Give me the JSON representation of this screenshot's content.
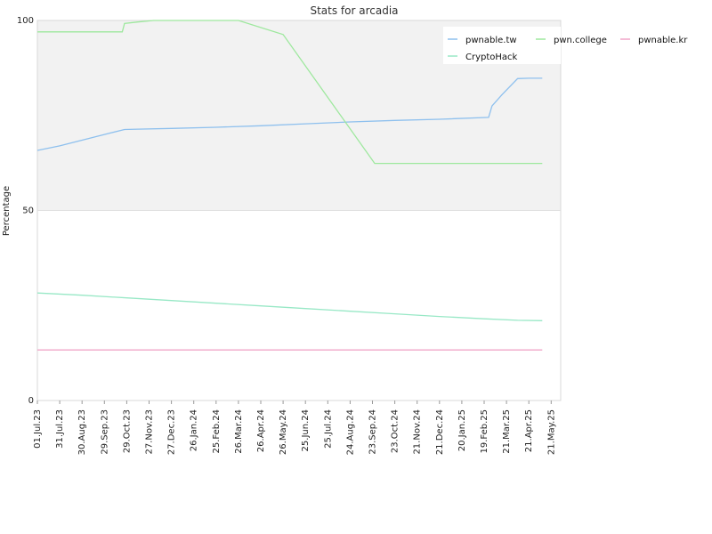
{
  "chart_data": {
    "type": "line",
    "title": "Stats for arcadia",
    "xlabel": "",
    "ylabel": "Percentage",
    "ylim": [
      0,
      100
    ],
    "yticks": [
      0,
      50,
      100
    ],
    "x_ticks": [
      "01.Jul.23",
      "31.Jul.23",
      "30.Aug.23",
      "29.Sep.23",
      "29.Oct.23",
      "27.Nov.23",
      "27.Dec.23",
      "26.Jan.24",
      "25.Feb.24",
      "26.Mar.24",
      "26.Apr.24",
      "26.May.24",
      "25.Jun.24",
      "25.Jul.24",
      "24.Aug.24",
      "23.Sep.24",
      "23.Oct.24",
      "21.Nov.24",
      "21.Dec.24",
      "20.Jan.25",
      "19.Feb.25",
      "21.Mar.25",
      "21.Apr.25",
      "21.May.25"
    ],
    "x_tick_index": [
      0,
      1,
      2,
      3,
      4,
      5,
      6,
      7,
      8,
      9,
      10,
      11,
      12,
      13,
      14,
      15,
      16,
      17,
      18,
      19,
      20,
      21,
      22,
      23
    ],
    "grid": "horizontal",
    "legend_position": "top-right",
    "shading": "upper-half",
    "series": [
      {
        "name": "pwnable.tw",
        "color": "#8ec0ee",
        "points": [
          [
            0,
            65.8
          ],
          [
            1,
            67.0
          ],
          [
            2,
            68.5
          ],
          [
            3,
            70.0
          ],
          [
            3.9,
            71.3
          ],
          [
            4.5,
            71.4
          ],
          [
            6,
            71.6
          ],
          [
            8,
            71.9
          ],
          [
            10,
            72.3
          ],
          [
            12,
            72.8
          ],
          [
            14,
            73.3
          ],
          [
            16,
            73.7
          ],
          [
            18,
            74.0
          ],
          [
            20.2,
            74.5
          ],
          [
            20.35,
            77.5
          ],
          [
            20.8,
            80.5
          ],
          [
            21.5,
            84.7
          ],
          [
            22,
            84.8
          ],
          [
            22.6,
            84.8
          ]
        ]
      },
      {
        "name": "pwn.college",
        "color": "#9ee89e",
        "points": [
          [
            0,
            97.0
          ],
          [
            3.8,
            97.0
          ],
          [
            3.9,
            99.2
          ],
          [
            4.5,
            99.6
          ],
          [
            5.2,
            100
          ],
          [
            9.0,
            100
          ],
          [
            11.0,
            96.3
          ],
          [
            15.1,
            62.4
          ],
          [
            16,
            62.4
          ],
          [
            22.6,
            62.4
          ]
        ]
      },
      {
        "name": "pwnable.kr",
        "color": "#f0a6c8",
        "points": [
          [
            0,
            13.3
          ],
          [
            22.6,
            13.3
          ]
        ]
      },
      {
        "name": "CryptoHack",
        "color": "#98e8c6",
        "points": [
          [
            0,
            28.3
          ],
          [
            2,
            27.7
          ],
          [
            4,
            27.0
          ],
          [
            6,
            26.3
          ],
          [
            8,
            25.6
          ],
          [
            10,
            24.9
          ],
          [
            12,
            24.2
          ],
          [
            14,
            23.5
          ],
          [
            16,
            22.8
          ],
          [
            18,
            22.1
          ],
          [
            20,
            21.5
          ],
          [
            21.5,
            21.1
          ],
          [
            22.6,
            21.0
          ]
        ]
      }
    ]
  }
}
